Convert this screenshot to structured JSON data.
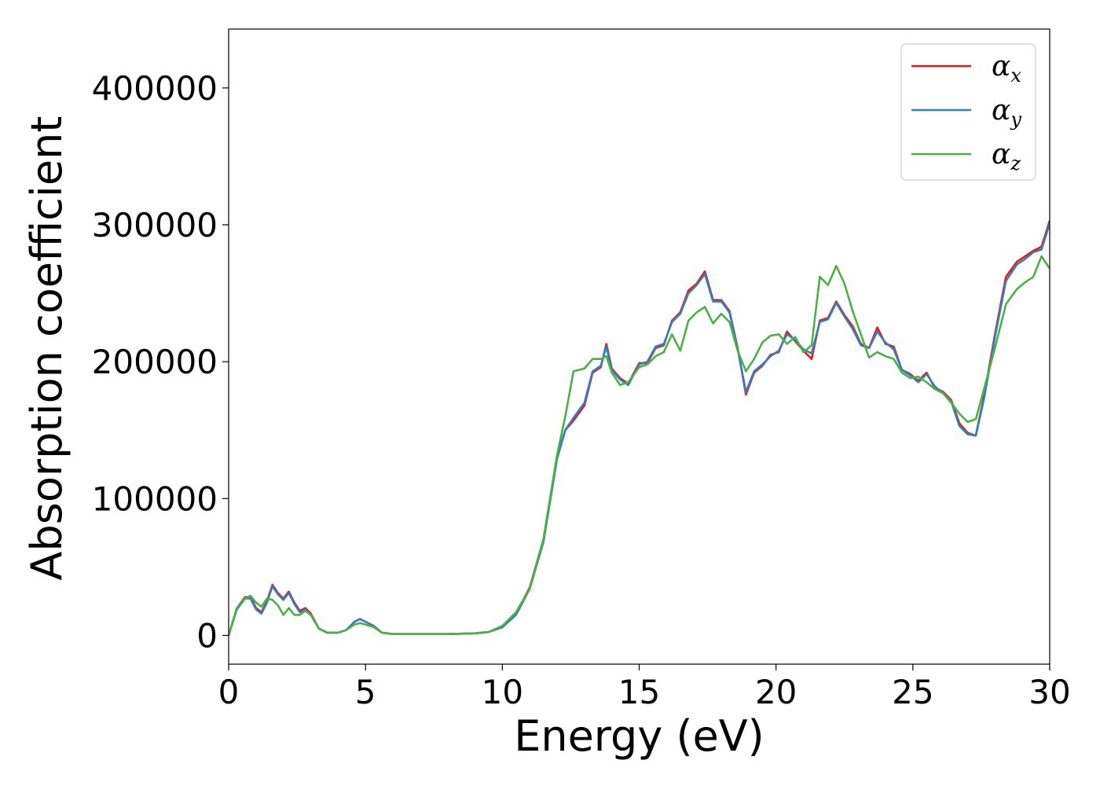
{
  "chart_data": {
    "type": "line",
    "xlabel": "Energy (eV)",
    "ylabel": "Absorption coefficient",
    "xlim": [
      0,
      30
    ],
    "ylim": [
      -21000,
      443000
    ],
    "x_ticks": [
      0,
      5,
      10,
      15,
      20,
      25,
      30
    ],
    "x_tick_labels": [
      "0",
      "5",
      "10",
      "15",
      "20",
      "25",
      "30"
    ],
    "y_ticks": [
      0,
      100000,
      200000,
      300000,
      400000
    ],
    "y_tick_labels": [
      "0",
      "100000",
      "200000",
      "300000",
      "400000"
    ],
    "grid": false,
    "legend_position": "top-right",
    "series": [
      {
        "name": "α",
        "name_subscript": "x",
        "color": "#e41a1c",
        "points": [
          [
            0,
            0
          ],
          [
            0.3,
            20000
          ],
          [
            0.6,
            28000
          ],
          [
            0.8,
            28000
          ],
          [
            1.0,
            20000
          ],
          [
            1.2,
            17000
          ],
          [
            1.4,
            25000
          ],
          [
            1.6,
            37000
          ],
          [
            1.8,
            31000
          ],
          [
            2.0,
            27000
          ],
          [
            2.2,
            32000
          ],
          [
            2.4,
            24000
          ],
          [
            2.6,
            18000
          ],
          [
            2.8,
            20000
          ],
          [
            3.0,
            16000
          ],
          [
            3.3,
            5000
          ],
          [
            3.6,
            2000
          ],
          [
            4.0,
            2000
          ],
          [
            4.3,
            4000
          ],
          [
            4.6,
            10000
          ],
          [
            4.8,
            12000
          ],
          [
            5.0,
            10000
          ],
          [
            5.3,
            7000
          ],
          [
            5.6,
            2000
          ],
          [
            6.0,
            1000
          ],
          [
            7.0,
            1000
          ],
          [
            8.0,
            1000
          ],
          [
            9.0,
            1500
          ],
          [
            9.5,
            2500
          ],
          [
            10.0,
            6000
          ],
          [
            10.5,
            16000
          ],
          [
            11.0,
            35000
          ],
          [
            11.5,
            70000
          ],
          [
            12.0,
            130000
          ],
          [
            12.3,
            150000
          ],
          [
            12.6,
            157000
          ],
          [
            13.0,
            168000
          ],
          [
            13.3,
            192000
          ],
          [
            13.6,
            196000
          ],
          [
            13.8,
            213000
          ],
          [
            14.0,
            195000
          ],
          [
            14.3,
            188000
          ],
          [
            14.6,
            184000
          ],
          [
            15.0,
            199000
          ],
          [
            15.3,
            199000
          ],
          [
            15.6,
            210000
          ],
          [
            15.9,
            212000
          ],
          [
            16.2,
            230000
          ],
          [
            16.5,
            236000
          ],
          [
            16.8,
            252000
          ],
          [
            17.1,
            257000
          ],
          [
            17.4,
            266000
          ],
          [
            17.7,
            245000
          ],
          [
            18.0,
            245000
          ],
          [
            18.3,
            237000
          ],
          [
            18.6,
            210000
          ],
          [
            18.9,
            176000
          ],
          [
            19.2,
            192000
          ],
          [
            19.5,
            197000
          ],
          [
            19.8,
            205000
          ],
          [
            20.1,
            207000
          ],
          [
            20.4,
            222000
          ],
          [
            20.7,
            215000
          ],
          [
            21.0,
            208000
          ],
          [
            21.3,
            202000
          ],
          [
            21.6,
            230000
          ],
          [
            21.9,
            232000
          ],
          [
            22.2,
            244000
          ],
          [
            22.5,
            234000
          ],
          [
            22.8,
            226000
          ],
          [
            23.1,
            213000
          ],
          [
            23.4,
            210000
          ],
          [
            23.7,
            225000
          ],
          [
            24.0,
            213000
          ],
          [
            24.3,
            211000
          ],
          [
            24.6,
            194000
          ],
          [
            24.9,
            191000
          ],
          [
            25.2,
            186000
          ],
          [
            25.5,
            192000
          ],
          [
            25.8,
            181000
          ],
          [
            26.1,
            178000
          ],
          [
            26.4,
            172000
          ],
          [
            26.7,
            155000
          ],
          [
            27.0,
            148000
          ],
          [
            27.3,
            146000
          ],
          [
            27.6,
            175000
          ],
          [
            28.0,
            220000
          ],
          [
            28.4,
            262000
          ],
          [
            28.8,
            273000
          ],
          [
            29.1,
            277000
          ],
          [
            29.4,
            281000
          ],
          [
            29.7,
            284000
          ],
          [
            30.0,
            303000
          ]
        ]
      },
      {
        "name": "α",
        "name_subscript": "y",
        "color": "#377eb8",
        "points": [
          [
            0,
            0
          ],
          [
            0.3,
            19000
          ],
          [
            0.6,
            27000
          ],
          [
            0.8,
            27000
          ],
          [
            1.0,
            19000
          ],
          [
            1.2,
            16000
          ],
          [
            1.4,
            24000
          ],
          [
            1.6,
            36000
          ],
          [
            1.8,
            30000
          ],
          [
            2.0,
            26000
          ],
          [
            2.2,
            31000
          ],
          [
            2.4,
            23000
          ],
          [
            2.6,
            17000
          ],
          [
            2.8,
            19000
          ],
          [
            3.0,
            15000
          ],
          [
            3.3,
            5000
          ],
          [
            3.6,
            2000
          ],
          [
            4.0,
            2000
          ],
          [
            4.3,
            4000
          ],
          [
            4.6,
            10000
          ],
          [
            4.8,
            12000
          ],
          [
            5.0,
            10000
          ],
          [
            5.3,
            7000
          ],
          [
            5.6,
            2000
          ],
          [
            6.0,
            1000
          ],
          [
            7.0,
            1000
          ],
          [
            8.0,
            1000
          ],
          [
            9.0,
            1500
          ],
          [
            9.5,
            2500
          ],
          [
            10.0,
            6000
          ],
          [
            10.5,
            15000
          ],
          [
            11.0,
            34000
          ],
          [
            11.5,
            68000
          ],
          [
            12.0,
            129000
          ],
          [
            12.3,
            150000
          ],
          [
            12.6,
            159000
          ],
          [
            13.0,
            170000
          ],
          [
            13.3,
            193000
          ],
          [
            13.6,
            197000
          ],
          [
            13.8,
            211000
          ],
          [
            14.0,
            194000
          ],
          [
            14.3,
            187000
          ],
          [
            14.6,
            183000
          ],
          [
            15.0,
            198000
          ],
          [
            15.3,
            200000
          ],
          [
            15.6,
            211000
          ],
          [
            15.9,
            213000
          ],
          [
            16.2,
            229000
          ],
          [
            16.5,
            235000
          ],
          [
            16.8,
            250000
          ],
          [
            17.1,
            256000
          ],
          [
            17.4,
            264000
          ],
          [
            17.7,
            244000
          ],
          [
            18.0,
            244000
          ],
          [
            18.3,
            236000
          ],
          [
            18.6,
            209000
          ],
          [
            18.9,
            178000
          ],
          [
            19.2,
            193000
          ],
          [
            19.5,
            198000
          ],
          [
            19.8,
            204000
          ],
          [
            20.1,
            208000
          ],
          [
            20.4,
            220000
          ],
          [
            20.7,
            216000
          ],
          [
            21.0,
            209000
          ],
          [
            21.3,
            206000
          ],
          [
            21.6,
            229000
          ],
          [
            21.9,
            231000
          ],
          [
            22.2,
            243000
          ],
          [
            22.5,
            233000
          ],
          [
            22.8,
            224000
          ],
          [
            23.1,
            212000
          ],
          [
            23.4,
            210000
          ],
          [
            23.7,
            222000
          ],
          [
            24.0,
            214000
          ],
          [
            24.3,
            209000
          ],
          [
            24.6,
            194000
          ],
          [
            24.9,
            190000
          ],
          [
            25.2,
            185000
          ],
          [
            25.5,
            191000
          ],
          [
            25.8,
            182000
          ],
          [
            26.1,
            177000
          ],
          [
            26.4,
            171000
          ],
          [
            26.7,
            153000
          ],
          [
            27.0,
            147000
          ],
          [
            27.3,
            146000
          ],
          [
            27.6,
            173000
          ],
          [
            28.0,
            218000
          ],
          [
            28.4,
            259000
          ],
          [
            28.8,
            271000
          ],
          [
            29.1,
            275000
          ],
          [
            29.4,
            280000
          ],
          [
            29.7,
            282000
          ],
          [
            30.0,
            301000
          ]
        ]
      },
      {
        "name": "α",
        "name_subscript": "z",
        "color": "#4daf4a",
        "points": [
          [
            0,
            0
          ],
          [
            0.3,
            20000
          ],
          [
            0.6,
            27000
          ],
          [
            0.8,
            29000
          ],
          [
            1.0,
            24000
          ],
          [
            1.2,
            21000
          ],
          [
            1.4,
            27000
          ],
          [
            1.6,
            26000
          ],
          [
            1.8,
            22000
          ],
          [
            2.0,
            15000
          ],
          [
            2.2,
            20000
          ],
          [
            2.4,
            15000
          ],
          [
            2.6,
            15000
          ],
          [
            2.8,
            18000
          ],
          [
            3.0,
            15000
          ],
          [
            3.3,
            5000
          ],
          [
            3.6,
            2000
          ],
          [
            4.0,
            2000
          ],
          [
            4.3,
            4000
          ],
          [
            4.6,
            8000
          ],
          [
            4.8,
            9000
          ],
          [
            5.0,
            8000
          ],
          [
            5.3,
            6000
          ],
          [
            5.6,
            2000
          ],
          [
            6.0,
            1000
          ],
          [
            7.0,
            1000
          ],
          [
            8.0,
            1000
          ],
          [
            9.0,
            1500
          ],
          [
            9.5,
            2500
          ],
          [
            10.0,
            7000
          ],
          [
            10.5,
            17000
          ],
          [
            11.0,
            34000
          ],
          [
            11.5,
            70000
          ],
          [
            12.0,
            132000
          ],
          [
            12.3,
            160000
          ],
          [
            12.6,
            193000
          ],
          [
            13.0,
            195000
          ],
          [
            13.3,
            202000
          ],
          [
            13.6,
            202000
          ],
          [
            13.8,
            204000
          ],
          [
            14.0,
            192000
          ],
          [
            14.3,
            183000
          ],
          [
            14.6,
            185000
          ],
          [
            15.0,
            196000
          ],
          [
            15.3,
            198000
          ],
          [
            15.6,
            204000
          ],
          [
            15.9,
            207000
          ],
          [
            16.2,
            220000
          ],
          [
            16.5,
            208000
          ],
          [
            16.8,
            230000
          ],
          [
            17.1,
            236000
          ],
          [
            17.4,
            240000
          ],
          [
            17.7,
            228000
          ],
          [
            18.0,
            235000
          ],
          [
            18.3,
            229000
          ],
          [
            18.6,
            208000
          ],
          [
            18.9,
            193000
          ],
          [
            19.2,
            202000
          ],
          [
            19.5,
            214000
          ],
          [
            19.8,
            219000
          ],
          [
            20.1,
            220000
          ],
          [
            20.4,
            213000
          ],
          [
            20.7,
            218000
          ],
          [
            21.0,
            207000
          ],
          [
            21.3,
            212000
          ],
          [
            21.6,
            262000
          ],
          [
            21.9,
            256000
          ],
          [
            22.2,
            270000
          ],
          [
            22.5,
            257000
          ],
          [
            22.8,
            237000
          ],
          [
            23.1,
            220000
          ],
          [
            23.4,
            203000
          ],
          [
            23.7,
            207000
          ],
          [
            24.0,
            204000
          ],
          [
            24.3,
            202000
          ],
          [
            24.6,
            192000
          ],
          [
            24.9,
            188000
          ],
          [
            25.2,
            189000
          ],
          [
            25.5,
            185000
          ],
          [
            25.8,
            180000
          ],
          [
            26.1,
            177000
          ],
          [
            26.4,
            170000
          ],
          [
            26.7,
            162000
          ],
          [
            27.0,
            156000
          ],
          [
            27.3,
            158000
          ],
          [
            27.6,
            180000
          ],
          [
            28.0,
            210000
          ],
          [
            28.4,
            242000
          ],
          [
            28.8,
            253000
          ],
          [
            29.1,
            258000
          ],
          [
            29.4,
            262000
          ],
          [
            29.7,
            277000
          ],
          [
            30.0,
            268000
          ]
        ]
      }
    ]
  }
}
